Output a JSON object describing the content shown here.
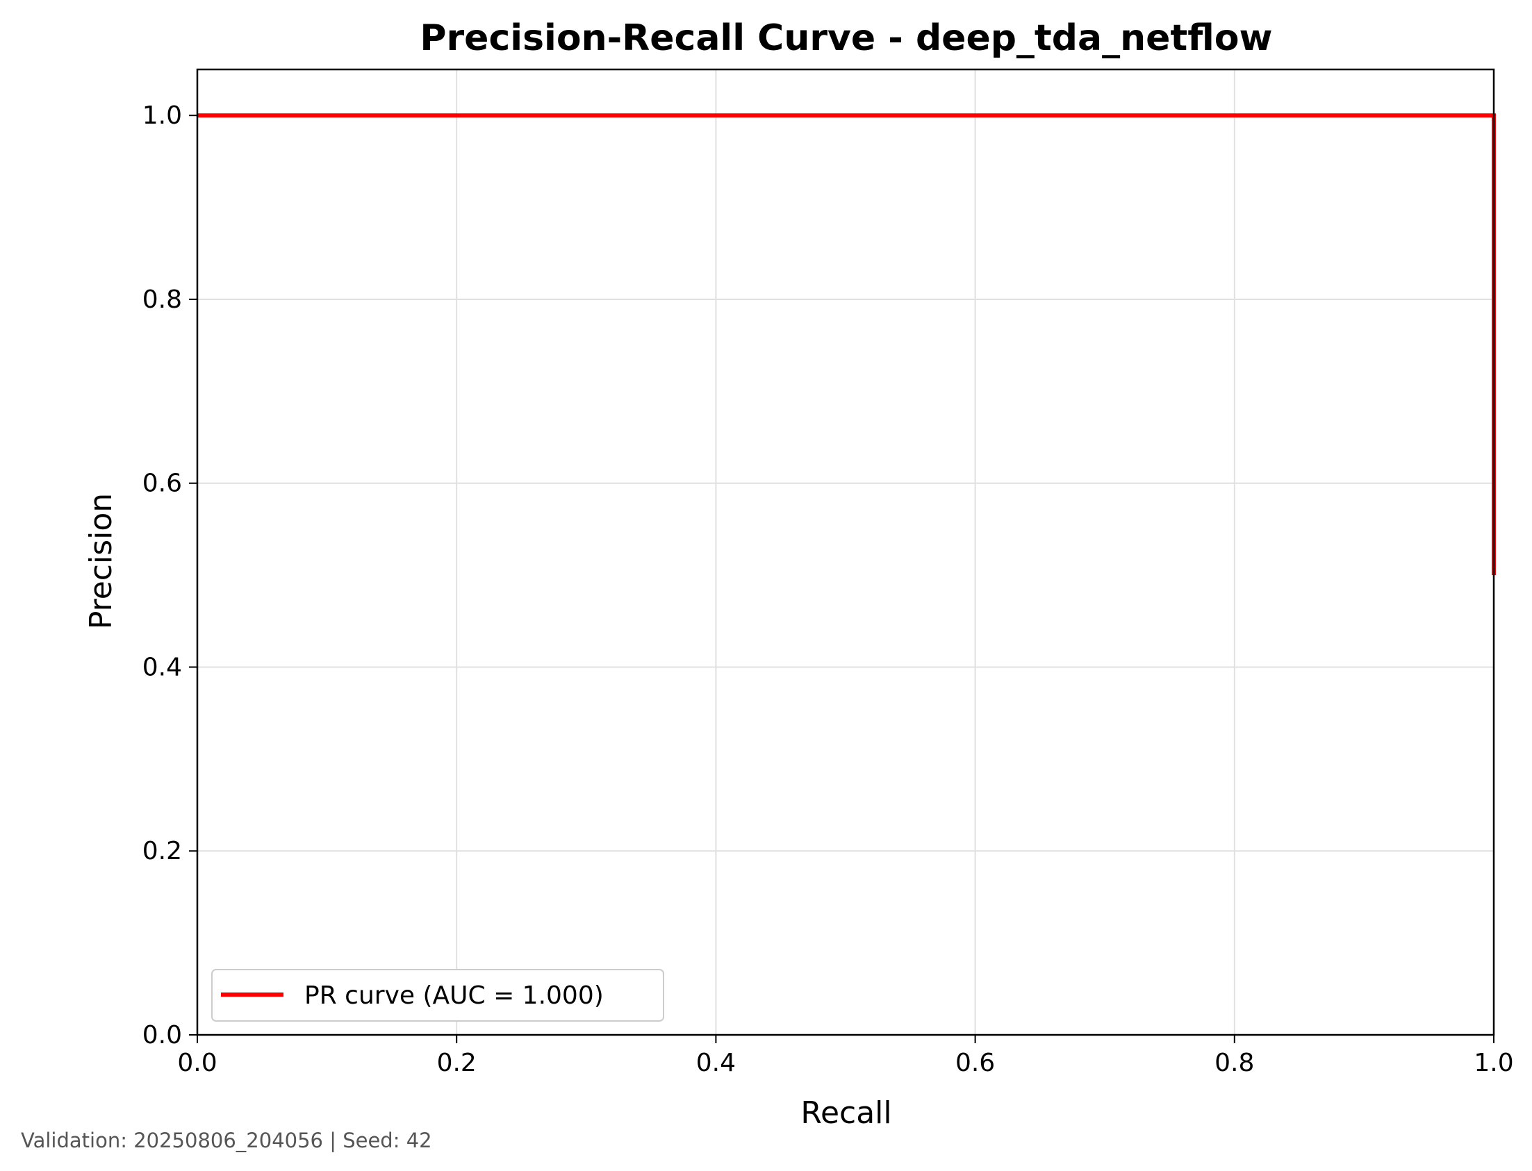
{
  "chart_data": {
    "type": "line",
    "title": "Precision-Recall Curve - deep_tda_netflow",
    "xlabel": "Recall",
    "ylabel": "Precision",
    "xlim": [
      0.0,
      1.0
    ],
    "ylim": [
      0.0,
      1.05
    ],
    "xticks": [
      0.0,
      0.2,
      0.4,
      0.6,
      0.8,
      1.0
    ],
    "xtick_labels": [
      "0.0",
      "0.2",
      "0.4",
      "0.6",
      "0.8",
      "1.0"
    ],
    "yticks": [
      0.0,
      0.2,
      0.4,
      0.6,
      0.8,
      1.0
    ],
    "ytick_labels": [
      "0.0",
      "0.2",
      "0.4",
      "0.6",
      "0.8",
      "1.0"
    ],
    "grid": true,
    "legend_position": "lower-left",
    "series": [
      {
        "name": "PR curve (AUC = 1.000)",
        "color": "#ff0000",
        "x": [
          0.0,
          1.0,
          1.0
        ],
        "y": [
          1.0,
          1.0,
          0.5
        ]
      }
    ]
  },
  "footer": {
    "note": "Validation: 20250806_204056 | Seed: 42"
  }
}
